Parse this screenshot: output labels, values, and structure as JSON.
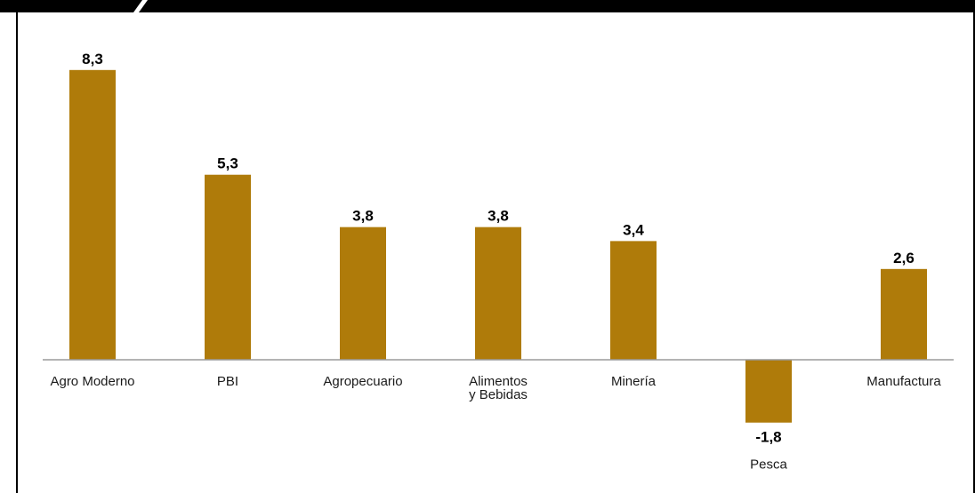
{
  "chart_data": {
    "type": "bar",
    "categories": [
      "Agro Moderno",
      "PBI",
      "Agropecuario",
      "Alimentos y Bebidas",
      "Minería",
      "Pesca",
      "Manufactura"
    ],
    "category_lines": [
      [
        "Agro Moderno"
      ],
      [
        "PBI"
      ],
      [
        "Agropecuario"
      ],
      [
        "Alimentos",
        "y Bebidas"
      ],
      [
        "Minería"
      ],
      [
        "Pesca"
      ],
      [
        "Manufactura"
      ]
    ],
    "values": [
      8.3,
      5.3,
      3.8,
      3.8,
      3.4,
      -1.8,
      2.6
    ],
    "value_labels": [
      "8,3",
      "5,3",
      "3,8",
      "3,8",
      "3,4",
      "-1,8",
      "2,6"
    ],
    "title": "",
    "xlabel": "",
    "ylabel": "",
    "ylim": [
      -2.5,
      9
    ],
    "grid": false,
    "legend": "none",
    "colors": {
      "bar": "#af7b0a",
      "axis": "#9a9a9a",
      "frame": "#000000",
      "text": "#000000"
    }
  }
}
